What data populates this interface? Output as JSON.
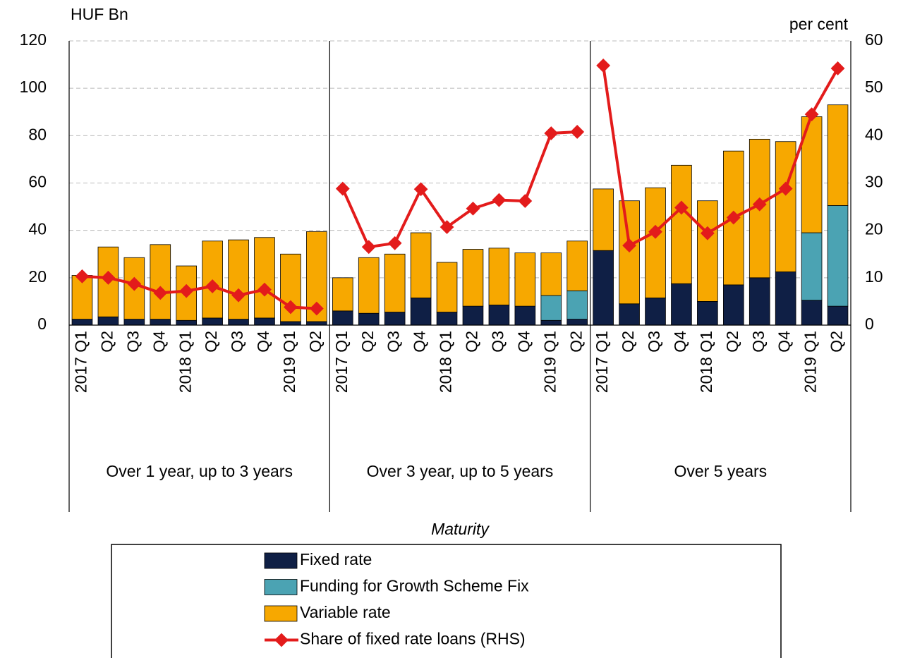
{
  "chart_data": {
    "type": "bar",
    "stacked": true,
    "y_label": "HUF Bn",
    "y2_label": "per cent",
    "x_label": "Maturity",
    "groups": [
      "Over 1 year, up to 3 years",
      "Over 3 year, up to 5 years",
      "Over 5 years"
    ],
    "categories": [
      "2017 Q1",
      "Q2",
      "Q3",
      "Q4",
      "2018 Q1",
      "Q2",
      "Q3",
      "Q4",
      "2019 Q1",
      "Q2",
      "2017 Q1",
      "Q2",
      "Q3",
      "Q4",
      "2018 Q1",
      "Q2",
      "Q3",
      "Q4",
      "2019 Q1",
      "Q2",
      "2017 Q1",
      "Q2",
      "Q3",
      "Q4",
      "2018 Q1",
      "Q2",
      "Q3",
      "Q4",
      "2019 Q1",
      "Q2"
    ],
    "series": [
      {
        "name": "Fixed rate",
        "color": "#0f1f45",
        "values": [
          2.5,
          3.5,
          2.5,
          2.5,
          2,
          3,
          2.5,
          3,
          1.5,
          1.5,
          6,
          5,
          5.5,
          11.5,
          5.5,
          8,
          8.5,
          8,
          2,
          2.5,
          31.5,
          9,
          11.5,
          17.5,
          10,
          17,
          20,
          22.5,
          10.5,
          8
        ]
      },
      {
        "name": "Funding for Growth Scheme Fix",
        "color": "#4ba3b3",
        "values": [
          0,
          0,
          0,
          0,
          0,
          0,
          0,
          0,
          0,
          0,
          0,
          0,
          0,
          0,
          0,
          0,
          0,
          0,
          10.5,
          12,
          0,
          0,
          0,
          0,
          0,
          0,
          0,
          0,
          28.5,
          42.5
        ]
      },
      {
        "name": "Variable rate",
        "color": "#f7a800",
        "values": [
          18.5,
          29.5,
          26,
          31.5,
          23,
          32.5,
          33.5,
          34,
          28.5,
          38,
          14,
          23.5,
          24.5,
          27.5,
          21,
          24,
          24,
          22.5,
          18,
          21,
          26,
          43.5,
          46.5,
          50,
          42.5,
          56.5,
          58.5,
          55,
          49,
          42.5
        ]
      },
      {
        "name": "Share of fixed rate loans (RHS)",
        "type": "line",
        "axis": "y2",
        "color": "#e31b1b",
        "values": [
          10.3,
          10,
          8.7,
          6.8,
          7.2,
          8.2,
          6.3,
          7.5,
          3.8,
          3.5,
          28.8,
          16.5,
          17.3,
          28.7,
          20.7,
          24.6,
          26.4,
          26.2,
          40.5,
          40.8,
          54.8,
          16.8,
          19.7,
          24.8,
          19.4,
          22.7,
          25.5,
          28.8,
          44.5,
          54.2
        ]
      }
    ],
    "ylim": [
      0,
      120
    ],
    "yticks": [
      0,
      20,
      40,
      60,
      80,
      100,
      120
    ],
    "y2lim": [
      0,
      60
    ],
    "y2ticks": [
      0,
      10,
      20,
      30,
      40,
      50,
      60
    ],
    "grid": true
  }
}
